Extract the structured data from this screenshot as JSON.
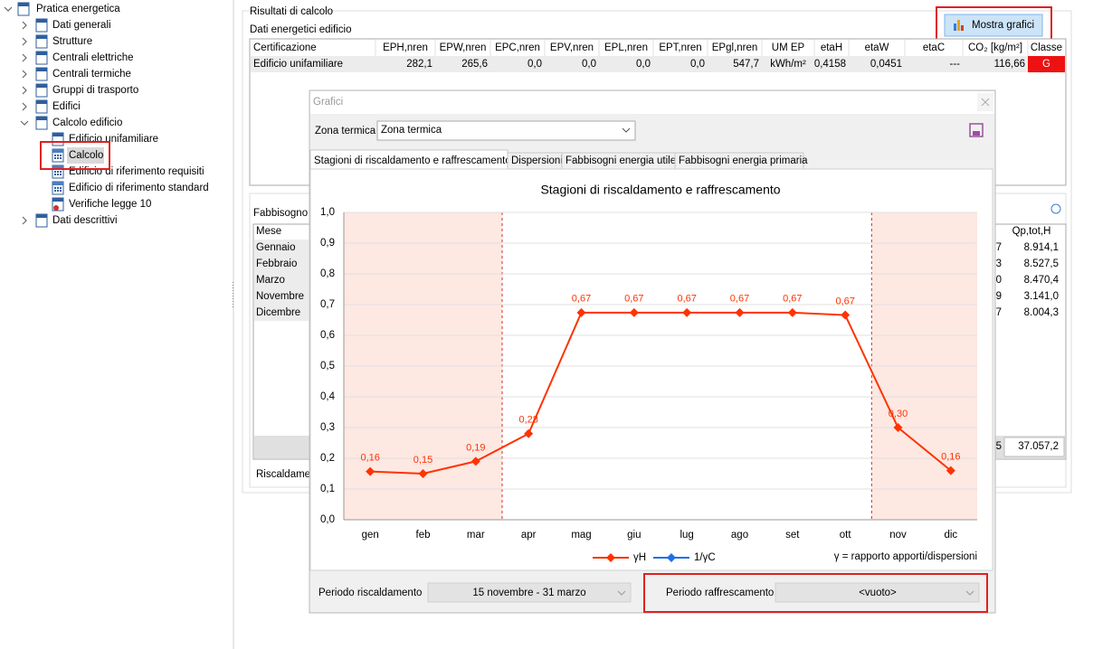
{
  "tree": {
    "label": "Pratica energetica",
    "children": [
      {
        "label": "Dati generali"
      },
      {
        "label": "Strutture"
      },
      {
        "label": "Centrali elettriche"
      },
      {
        "label": "Centrali termiche"
      },
      {
        "label": "Gruppi di trasporto"
      },
      {
        "label": "Edifici"
      },
      {
        "label": "Calcolo edificio",
        "children": [
          {
            "label": "Edificio unifamiliare"
          },
          {
            "label": "Calcolo"
          },
          {
            "label": "Edificio di riferimento requisiti"
          },
          {
            "label": "Edificio di riferimento standard"
          },
          {
            "label": "Verifiche legge 10"
          }
        ]
      },
      {
        "label": "Dati descrittivi"
      }
    ]
  },
  "results": {
    "title": "Risultati di calcolo",
    "subtitle": "Dati energetici edificio",
    "button": "Mostra grafici",
    "columns": [
      "Certificazione",
      "EPH,nren",
      "EPW,nren",
      "EPC,nren",
      "EPV,nren",
      "EPL,nren",
      "EPT,nren",
      "EPgl,nren",
      "UM EP",
      "etaH",
      "etaW",
      "etaC",
      "CO₂ [kg/m²]",
      "Classe"
    ],
    "rows": [
      [
        "Edificio unifamiliare",
        "282,1",
        "265,6",
        "0,0",
        "0,0",
        "0,0",
        "0,0",
        "547,7",
        "kWh/m²",
        "0,4158",
        "0,0451",
        "---",
        "116,66",
        "G"
      ]
    ]
  },
  "monthly": {
    "label": "Fabbisogno n",
    "first_column": "Mese",
    "last_column": "Qp,tot,H",
    "rows": [
      {
        "month": "Gennaio",
        "partial": "7",
        "last": "8.914,1"
      },
      {
        "month": "Febbraio",
        "partial": "3",
        "last": "8.527,5"
      },
      {
        "month": "Marzo",
        "partial": "0",
        "last": "8.470,4"
      },
      {
        "month": "Novembre",
        "partial": "9",
        "last": "3.141,0"
      },
      {
        "month": "Dicembre",
        "partial": "7",
        "last": "8.004,3"
      }
    ],
    "totals": {
      "partial": "5",
      "last": "37.057,2"
    },
    "footer_label": "Riscaldamen"
  },
  "dialog": {
    "title": "Grafici",
    "zone_label": "Zona termica",
    "zone_value": "Zona termica",
    "tabs": [
      "Stagioni di riscaldamento e raffrescamento",
      "Dispersioni",
      "Fabbisogni energia utile",
      "Fabbisogni energia primaria"
    ],
    "heating_label": "Periodo riscaldamento",
    "heating_value": "15 novembre - 31 marzo",
    "cooling_label": "Periodo raffrescamento",
    "cooling_value": "<vuoto>"
  },
  "chart_data": {
    "type": "line",
    "title": "Stagioni di riscaldamento e raffrescamento",
    "categories": [
      "gen",
      "feb",
      "mar",
      "apr",
      "mag",
      "giu",
      "lug",
      "ago",
      "set",
      "ott",
      "nov",
      "dic"
    ],
    "series": [
      {
        "name": "γH",
        "color": "#ff3300",
        "values": [
          0.157,
          0.15,
          0.19,
          0.28,
          0.674,
          0.674,
          0.674,
          0.674,
          0.674,
          0.666,
          0.3,
          0.16
        ],
        "value_labels": [
          "0,16",
          "0,15",
          "0,19",
          "0,28",
          "0,67",
          "0,67",
          "0,67",
          "0,67",
          "0,67",
          "0,67",
          "0,30",
          "0,16"
        ]
      },
      {
        "name": "1/γC",
        "color": "#1f6fe8",
        "values": [
          null,
          null,
          null,
          null,
          null,
          null,
          null,
          null,
          null,
          null,
          null,
          null
        ]
      }
    ],
    "ylim": [
      0,
      1
    ],
    "yticks": [
      {
        "value": 0,
        "label": "0,0"
      },
      {
        "value": 0.1,
        "label": "0,1"
      },
      {
        "value": 0.2,
        "label": "0,2"
      },
      {
        "value": 0.3,
        "label": "0,3"
      },
      {
        "value": 0.4,
        "label": "0,4"
      },
      {
        "value": 0.5,
        "label": "0,5"
      },
      {
        "value": 0.6,
        "label": "0,6"
      },
      {
        "value": 0.7,
        "label": "0,7"
      },
      {
        "value": 0.8,
        "label": "0,8"
      },
      {
        "value": 0.9,
        "label": "0,9"
      },
      {
        "value": 1,
        "label": "1,0"
      }
    ],
    "grid": true,
    "shaded": [
      {
        "from": "gen",
        "to": "mar"
      },
      {
        "from": "nov",
        "to": "dic"
      }
    ],
    "shade_color": "#fde8e2",
    "annotation": "γ = rapporto apporti/dispersioni"
  }
}
